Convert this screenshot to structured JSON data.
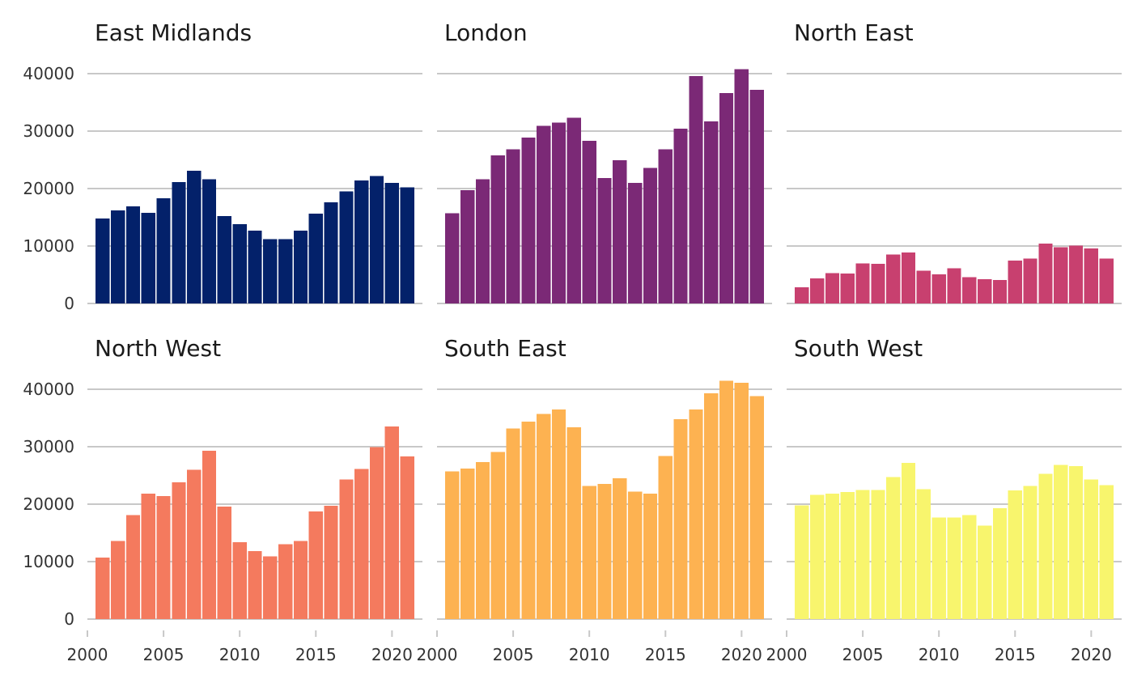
{
  "chart_data": {
    "type": "bar",
    "layout": "facet-grid",
    "x": [
      2001,
      2002,
      2003,
      2004,
      2005,
      2006,
      2007,
      2008,
      2009,
      2010,
      2011,
      2012,
      2013,
      2014,
      2015,
      2016,
      2017,
      2018,
      2019,
      2020,
      2021
    ],
    "xlim": [
      2000,
      2022
    ],
    "x_ticks": [
      2000,
      2005,
      2010,
      2015,
      2020
    ],
    "ylim": [
      0,
      40000
    ],
    "y_ticks": [
      0,
      10000,
      20000,
      30000,
      40000
    ],
    "grid": true,
    "legend": "none",
    "series": [
      {
        "name": "East Midlands",
        "color": "#03216A",
        "values": [
          14800,
          16200,
          16900,
          15800,
          18300,
          21100,
          23100,
          21600,
          15200,
          13800,
          12700,
          11200,
          11200,
          12700,
          15600,
          17600,
          19500,
          21400,
          22200,
          21000,
          20200
        ]
      },
      {
        "name": "London",
        "color": "#7B2976",
        "values": [
          15700,
          19700,
          21600,
          25800,
          26800,
          28900,
          30900,
          31500,
          32300,
          28300,
          21800,
          24900,
          21000,
          23600,
          26800,
          30400,
          39600,
          31700,
          36600,
          40800,
          37200
        ]
      },
      {
        "name": "North East",
        "color": "#C8406F",
        "values": [
          2800,
          4400,
          5300,
          5200,
          7000,
          6900,
          8500,
          8900,
          5700,
          5100,
          6100,
          4600,
          4200,
          4100,
          7500,
          7800,
          10400,
          9800,
          10100,
          9600,
          7800
        ]
      },
      {
        "name": "North West",
        "color": "#F47A5E",
        "values": [
          10700,
          13600,
          18100,
          21800,
          21400,
          23800,
          26000,
          29300,
          19600,
          13400,
          11800,
          10900,
          13000,
          13600,
          18700,
          19700,
          24300,
          26100,
          29900,
          33500,
          28300
        ]
      },
      {
        "name": "South East",
        "color": "#FDB251",
        "values": [
          25700,
          26200,
          27300,
          29100,
          33200,
          34400,
          35700,
          36500,
          33400,
          23200,
          23500,
          24500,
          22200,
          21800,
          28400,
          34800,
          36500,
          39300,
          41500,
          41100,
          38800
        ]
      },
      {
        "name": "South West",
        "color": "#F8F56D",
        "values": [
          19800,
          21600,
          21800,
          22100,
          22500,
          22500,
          24700,
          27200,
          22600,
          17700,
          17700,
          18100,
          16300,
          19300,
          22400,
          23200,
          25300,
          26800,
          26600,
          24300,
          23300
        ]
      }
    ]
  }
}
